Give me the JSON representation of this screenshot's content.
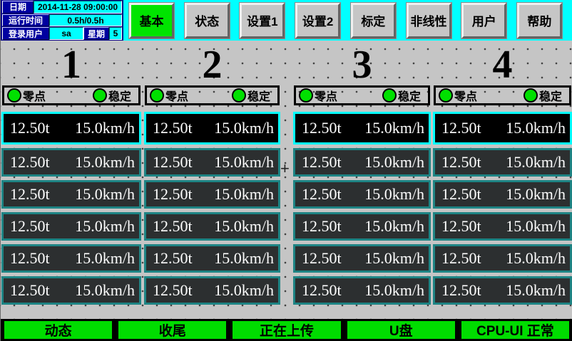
{
  "header": {
    "info": {
      "date_label": "日期",
      "date_value": "2014-11-28 09:00:00",
      "runtime_label": "运行时间",
      "runtime_value": "0.5h/0.5h",
      "user_label": "登录用户",
      "user_value": "sa",
      "weekday_label": "星期",
      "weekday_value": "5"
    },
    "tabs": [
      {
        "label": "基本",
        "active": true
      },
      {
        "label": "状态",
        "active": false
      },
      {
        "label": "设置1",
        "active": false
      },
      {
        "label": "设置2",
        "active": false
      },
      {
        "label": "标定",
        "active": false
      },
      {
        "label": "非线性",
        "active": false
      },
      {
        "label": "用户",
        "active": false
      },
      {
        "label": "帮助",
        "active": false
      }
    ]
  },
  "channels": [
    {
      "number": "1",
      "zero_label": "零点",
      "stable_label": "稳定",
      "rows": [
        {
          "weight": "12.50t",
          "speed": "15.0km/h"
        },
        {
          "weight": "12.50t",
          "speed": "15.0km/h"
        },
        {
          "weight": "12.50t",
          "speed": "15.0km/h"
        },
        {
          "weight": "12.50t",
          "speed": "15.0km/h"
        },
        {
          "weight": "12.50t",
          "speed": "15.0km/h"
        },
        {
          "weight": "12.50t",
          "speed": "15.0km/h"
        }
      ]
    },
    {
      "number": "2",
      "zero_label": "零点",
      "stable_label": "稳定",
      "rows": [
        {
          "weight": "12.50t",
          "speed": "15.0km/h"
        },
        {
          "weight": "12.50t",
          "speed": "15.0km/h"
        },
        {
          "weight": "12.50t",
          "speed": "15.0km/h"
        },
        {
          "weight": "12.50t",
          "speed": "15.0km/h"
        },
        {
          "weight": "12.50t",
          "speed": "15.0km/h"
        },
        {
          "weight": "12.50t",
          "speed": "15.0km/h"
        }
      ]
    },
    {
      "number": "3",
      "zero_label": "零点",
      "stable_label": "稳定",
      "rows": [
        {
          "weight": "12.50t",
          "speed": "15.0km/h"
        },
        {
          "weight": "12.50t",
          "speed": "15.0km/h"
        },
        {
          "weight": "12.50t",
          "speed": "15.0km/h"
        },
        {
          "weight": "12.50t",
          "speed": "15.0km/h"
        },
        {
          "weight": "12.50t",
          "speed": "15.0km/h"
        },
        {
          "weight": "12.50t",
          "speed": "15.0km/h"
        }
      ]
    },
    {
      "number": "4",
      "zero_label": "零点",
      "stable_label": "稳定",
      "rows": [
        {
          "weight": "12.50t",
          "speed": "15.0km/h"
        },
        {
          "weight": "12.50t",
          "speed": "15.0km/h"
        },
        {
          "weight": "12.50t",
          "speed": "15.0km/h"
        },
        {
          "weight": "12.50t",
          "speed": "15.0km/h"
        },
        {
          "weight": "12.50t",
          "speed": "15.0km/h"
        },
        {
          "weight": "12.50t",
          "speed": "15.0km/h"
        }
      ]
    }
  ],
  "crosshair_mark": "+",
  "status_bar": {
    "items": [
      {
        "label": "动态"
      },
      {
        "label": "收尾"
      },
      {
        "label": "正在上传"
      },
      {
        "label": "U盘"
      },
      {
        "label": "CPU-UI 正常"
      }
    ]
  },
  "colors": {
    "header_cyan": "#00FFFF",
    "panel_navy": "#0000A0",
    "active_tab_green": "#00E400",
    "lamp_green": "#00E000",
    "row_border_teal": "#1E8484",
    "row_active_border_cyan": "#00FFFF",
    "status_green": "#00DC00",
    "main_gray": "#C5C5C5"
  }
}
